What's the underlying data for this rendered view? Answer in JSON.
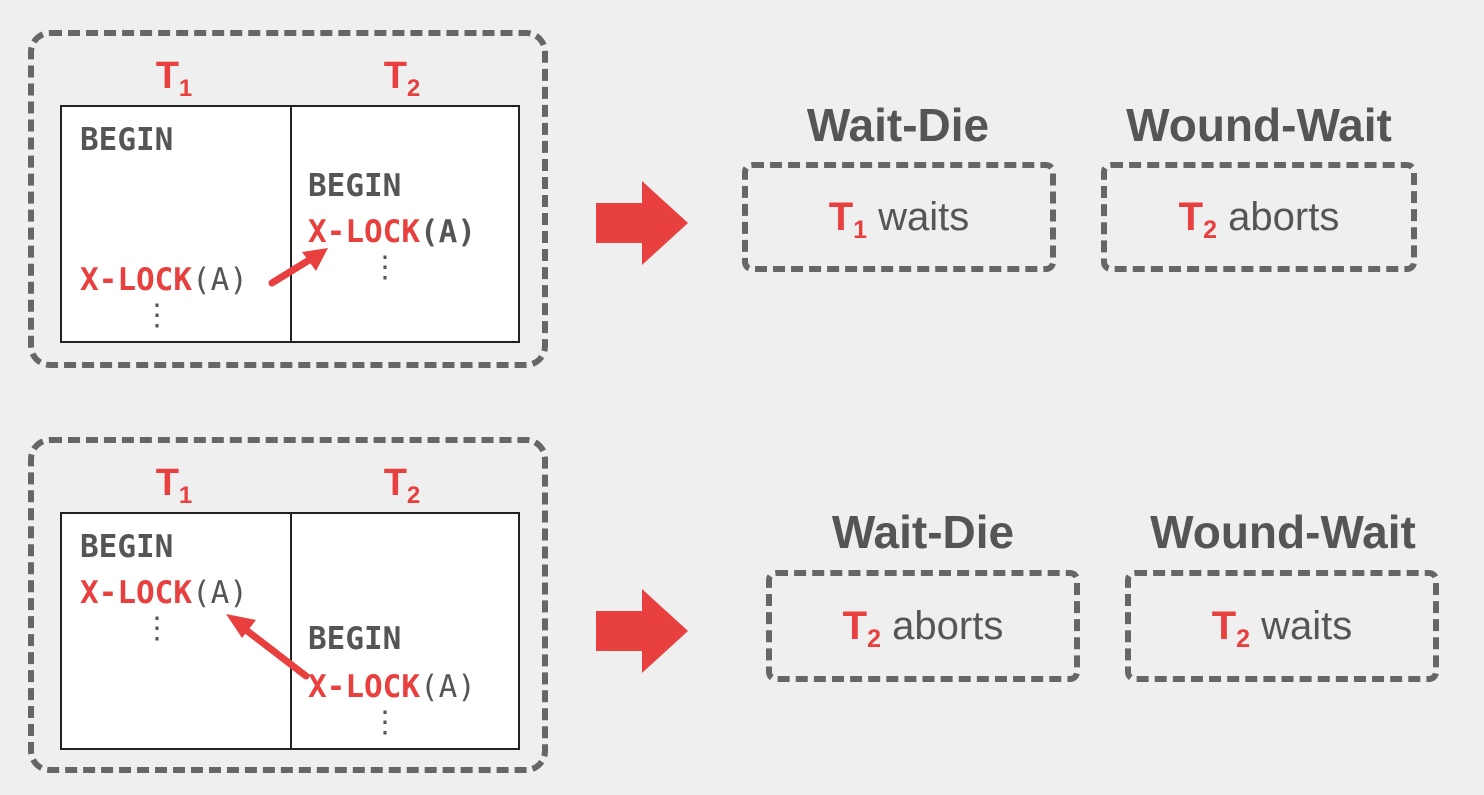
{
  "scenarios": [
    {
      "t1_label": "T",
      "t1_sub": "1",
      "t2_label": "T",
      "t2_sub": "2",
      "t1_begin": "BEGIN",
      "t1_lock_op": "X-LOCK",
      "t1_lock_arg": "(A)",
      "t1_dots": "⋮",
      "t2_begin": "BEGIN",
      "t2_lock_op": "X-LOCK",
      "t2_lock_arg": "(A)",
      "t2_dots": "⋮",
      "policies": [
        {
          "title": "Wait-Die",
          "txn": "T",
          "txn_sub": "1",
          "action": "waits"
        },
        {
          "title": "Wound-Wait",
          "txn": "T",
          "txn_sub": "2",
          "action": "aborts"
        }
      ]
    },
    {
      "t1_label": "T",
      "t1_sub": "1",
      "t2_label": "T",
      "t2_sub": "2",
      "t1_begin": "BEGIN",
      "t1_lock_op": "X-LOCK",
      "t1_lock_arg": "(A)",
      "t1_dots": "⋮",
      "t2_begin": "BEGIN",
      "t2_lock_op": "X-LOCK",
      "t2_lock_arg": "(A)",
      "t2_dots": "⋮",
      "policies": [
        {
          "title": "Wait-Die",
          "txn": "T",
          "txn_sub": "2",
          "action": "aborts"
        },
        {
          "title": "Wound-Wait",
          "txn": "T",
          "txn_sub": "2",
          "action": "waits"
        }
      ]
    }
  ],
  "colors": {
    "accent": "#e8403f",
    "text": "#555555",
    "border": "#666666",
    "background": "#efefef"
  }
}
